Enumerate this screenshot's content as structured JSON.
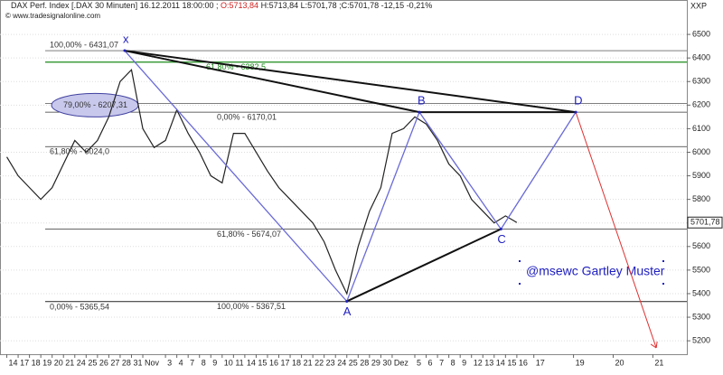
{
  "header": {
    "instrument": "DAX Perf. Index [.DAX  30 Minuten] 16.12.2011 18:00:00 ;",
    "open": "O:5713,84",
    "rest": "H:5713,84 L:5701,78 ;C:5701,78 -12,15 -0,21%"
  },
  "watermark": "© www.tradesignalonline.com",
  "chart_data": {
    "type": "line",
    "y_axis_label": "XXP",
    "xlim": [
      -0.6,
      60
    ],
    "ylim": [
      5143,
      6646
    ],
    "grid": true,
    "yticks": [
      5200,
      5300,
      5400,
      5500,
      5600,
      5700,
      5800,
      5900,
      6000,
      6100,
      6200,
      6300,
      6400,
      6500
    ],
    "xticks": [
      {
        "value": 0,
        "label": "14"
      },
      {
        "value": 1,
        "label": "17"
      },
      {
        "value": 2,
        "label": "18"
      },
      {
        "value": 3,
        "label": "19"
      },
      {
        "value": 4,
        "label": "20"
      },
      {
        "value": 5,
        "label": "21"
      },
      {
        "value": 6,
        "label": "24"
      },
      {
        "value": 7,
        "label": "25"
      },
      {
        "value": 8,
        "label": "26"
      },
      {
        "value": 9,
        "label": "27"
      },
      {
        "value": 10,
        "label": "28"
      },
      {
        "value": 11,
        "label": "31"
      },
      {
        "value": 12,
        "label": "Nov"
      },
      {
        "value": 14,
        "label": "3"
      },
      {
        "value": 15,
        "label": "4"
      },
      {
        "value": 16,
        "label": "7"
      },
      {
        "value": 17,
        "label": "8"
      },
      {
        "value": 18,
        "label": "9"
      },
      {
        "value": 19,
        "label": "10"
      },
      {
        "value": 20,
        "label": "11"
      },
      {
        "value": 21,
        "label": "14"
      },
      {
        "value": 22,
        "label": "15"
      },
      {
        "value": 23,
        "label": "16"
      },
      {
        "value": 24,
        "label": "17"
      },
      {
        "value": 25,
        "label": "18"
      },
      {
        "value": 26,
        "label": "21"
      },
      {
        "value": 27,
        "label": "22"
      },
      {
        "value": 28,
        "label": "23"
      },
      {
        "value": 29,
        "label": "24"
      },
      {
        "value": 30,
        "label": "25"
      },
      {
        "value": 31,
        "label": "28"
      },
      {
        "value": 32,
        "label": "29"
      },
      {
        "value": 33,
        "label": "30"
      },
      {
        "value": 34,
        "label": "Dez"
      },
      {
        "value": 36,
        "label": "5"
      },
      {
        "value": 37,
        "label": "6"
      },
      {
        "value": 38,
        "label": "7"
      },
      {
        "value": 39,
        "label": "8"
      },
      {
        "value": 40,
        "label": "9"
      },
      {
        "value": 41,
        "label": "12"
      },
      {
        "value": 42,
        "label": "13"
      },
      {
        "value": 43,
        "label": "14"
      },
      {
        "value": 44,
        "label": "15"
      },
      {
        "value": 45,
        "label": "16"
      },
      {
        "value": 46.5,
        "label": "17"
      },
      {
        "value": 50,
        "label": "19"
      },
      {
        "value": 53.5,
        "label": "20"
      },
      {
        "value": 57,
        "label": "21"
      }
    ],
    "series": [
      {
        "name": "DAX",
        "color": "#222222",
        "x": [
          0,
          1,
          2,
          3,
          4,
          5,
          6,
          7,
          8,
          9,
          10,
          11,
          12,
          13,
          14,
          15,
          16,
          17,
          18,
          19,
          20,
          21,
          22,
          23,
          24,
          25,
          26,
          27,
          28,
          29,
          30,
          31,
          32,
          33,
          34,
          35,
          36,
          37,
          38,
          39,
          40,
          41,
          42,
          43,
          44,
          45
        ],
        "values": [
          5980,
          5900,
          5850,
          5800,
          5850,
          5950,
          6050,
          6000,
          6050,
          6150,
          6300,
          6350,
          6100,
          6020,
          6050,
          6180,
          6080,
          6000,
          5900,
          5870,
          6080,
          6080,
          6000,
          5920,
          5850,
          5800,
          5750,
          5700,
          5620,
          5500,
          5400,
          5600,
          5750,
          5850,
          6080,
          6100,
          6150,
          6120,
          6050,
          5950,
          5900,
          5800,
          5750,
          5700,
          5730,
          5701.78
        ]
      }
    ],
    "last_price": {
      "value": 5701.78,
      "label": "5701,78"
    },
    "levels": [
      {
        "value": 6431.07,
        "label": "100,00% - 6431,07",
        "color": "#333333"
      },
      {
        "value": 6382.5,
        "label": "61,80% - 6382,5",
        "color": "#1a8a1a"
      },
      {
        "value": 6207.31,
        "label": "79,00% - 6207,31",
        "color": "#333333"
      },
      {
        "value": 6170.01,
        "label": "0,00% - 6170,01",
        "color": "#333333"
      },
      {
        "value": 6024,
        "label": "61,80% - 6024,0",
        "color": "#333333"
      },
      {
        "value": 5674.07,
        "label": "61,80% - 5674,07",
        "color": "#333333"
      },
      {
        "value": 5367.51,
        "label": "100,00% - 5367,51",
        "color": "#333333"
      },
      {
        "value": 5365.54,
        "label": "0,00% - 5365,54",
        "color": "#333333"
      }
    ],
    "pattern": [
      {
        "label": "x",
        "x": 10.4,
        "y": 6431.07
      },
      {
        "label": "A",
        "x": 30,
        "y": 5367.51
      },
      {
        "label": "B",
        "x": 36.4,
        "y": 6170.01
      },
      {
        "label": "C",
        "x": 43.6,
        "y": 5674.07
      },
      {
        "label": "D",
        "x": 50.2,
        "y": 6170
      }
    ],
    "projection": {
      "x": [
        50.2,
        57.3
      ],
      "y": [
        6170,
        5170
      ],
      "color": "#e03030"
    },
    "annotation": "@msewc Gartley Muster"
  }
}
